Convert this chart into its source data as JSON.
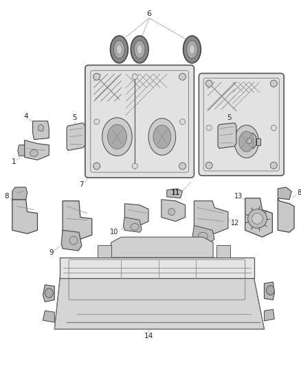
{
  "bg_color": "#ffffff",
  "line_color": "#555555",
  "fig_width": 4.38,
  "fig_height": 5.33,
  "dpi": 100,
  "label_color": "#222222",
  "leader_color": "#aaaaaa",
  "part_edge": "#555555",
  "part_face": "#d8d8d8",
  "part_face2": "#c0c0c0",
  "part_face3": "#e8e8e8"
}
